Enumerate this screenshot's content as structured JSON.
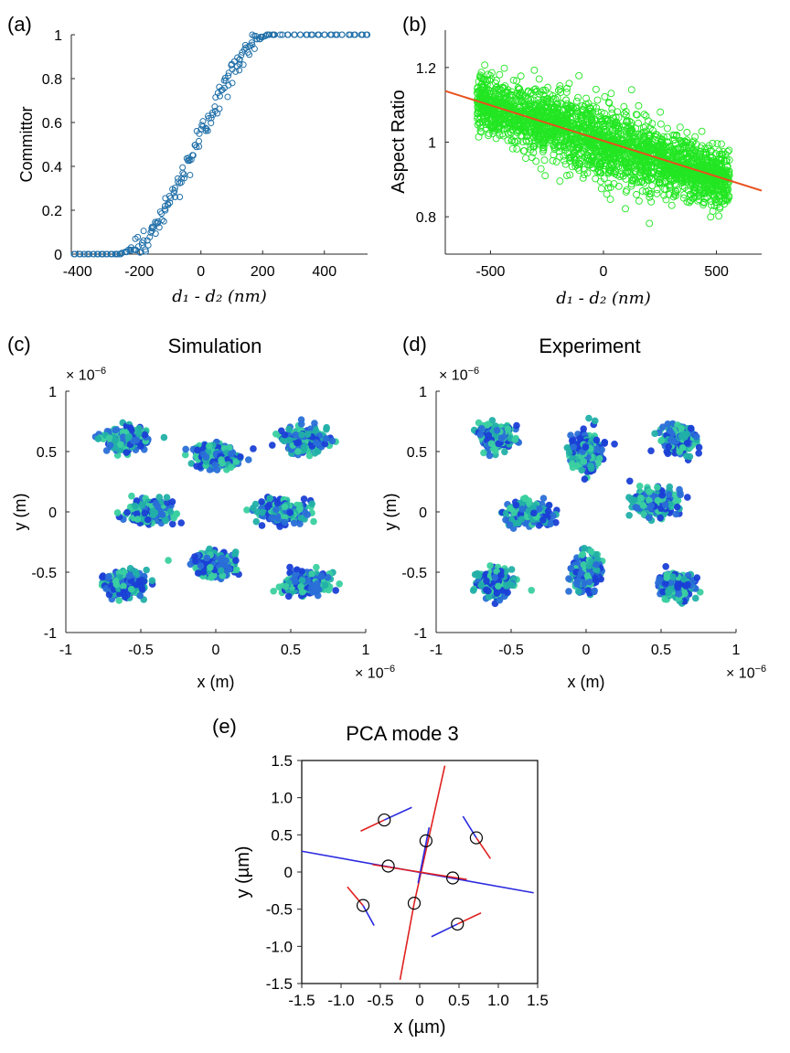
{
  "figure": {
    "panels": {
      "a": {
        "label": "(a)"
      },
      "b": {
        "label": "(b)"
      },
      "c": {
        "label": "(c)",
        "title": "Simulation",
        "x_exp": "× 10",
        "x_exp_power": "−6",
        "y_exp": "× 10",
        "y_exp_power": "−6"
      },
      "d": {
        "label": "(d)",
        "title": "Experiment",
        "x_exp": "× 10",
        "x_exp_power": "−6",
        "y_exp": "× 10",
        "y_exp_power": "−6"
      },
      "e": {
        "label": "(e)",
        "title": "PCA mode 3"
      }
    }
  },
  "chart_data": [
    {
      "id": "a",
      "type": "scatter",
      "xlabel": "d1 - d2 (nm)",
      "ylabel": "Committor",
      "xlim": [
        -420,
        540
      ],
      "ylim": [
        0,
        1
      ],
      "xticks": [
        -400,
        -200,
        0,
        200,
        400
      ],
      "xtick_labels": [
        "-400",
        "-200",
        "0",
        "200",
        "400"
      ],
      "yticks": [
        0,
        0.2,
        0.4,
        0.6,
        0.8,
        1
      ],
      "ytick_labels": [
        "0",
        "0.2",
        "0.4",
        "0.6",
        "0.8",
        "1"
      ],
      "series": [
        {
          "color": "#1f6fa8",
          "marker": "open-circle",
          "description": "sigmoid committor vs distance difference",
          "points": [
            [
              -410,
              0
            ],
            [
              -395,
              0
            ],
            [
              -380,
              0
            ],
            [
              -365,
              0
            ],
            [
              -350,
              0
            ],
            [
              -335,
              0
            ],
            [
              -320,
              0
            ],
            [
              -305,
              0
            ],
            [
              -290,
              0
            ],
            [
              -280,
              0
            ],
            [
              -270,
              0
            ],
            [
              -262,
              0
            ],
            [
              -255,
              0.005
            ],
            [
              -248,
              0.01
            ],
            [
              -240,
              0.01
            ],
            [
              -232,
              0.02
            ],
            [
              -225,
              0.03
            ],
            [
              -218,
              0.02
            ],
            [
              -212,
              0.04
            ],
            [
              -205,
              0.05
            ],
            [
              -198,
              0.04
            ],
            [
              -192,
              0.06
            ],
            [
              -185,
              0.07
            ],
            [
              -178,
              0.05
            ],
            [
              -172,
              0.08
            ],
            [
              -165,
              0.1
            ],
            [
              -160,
              0.09
            ],
            [
              -154,
              0.12
            ],
            [
              -148,
              0.11
            ],
            [
              -142,
              0.14
            ],
            [
              -136,
              0.13
            ],
            [
              -130,
              0.17
            ],
            [
              -124,
              0.15
            ],
            [
              -118,
              0.19
            ],
            [
              -112,
              0.22
            ],
            [
              -106,
              0.2
            ],
            [
              -100,
              0.24
            ],
            [
              -94,
              0.27
            ],
            [
              -88,
              0.25
            ],
            [
              -82,
              0.3
            ],
            [
              -76,
              0.33
            ],
            [
              -70,
              0.29
            ],
            [
              -64,
              0.35
            ],
            [
              -58,
              0.38
            ],
            [
              -52,
              0.36
            ],
            [
              -46,
              0.41
            ],
            [
              -40,
              0.44
            ],
            [
              -34,
              0.4
            ],
            [
              -28,
              0.46
            ],
            [
              -22,
              0.48
            ],
            [
              -16,
              0.5
            ],
            [
              -10,
              0.53
            ],
            [
              -4,
              0.51
            ],
            [
              2,
              0.55
            ],
            [
              8,
              0.58
            ],
            [
              14,
              0.56
            ],
            [
              20,
              0.6
            ],
            [
              26,
              0.63
            ],
            [
              32,
              0.61
            ],
            [
              38,
              0.65
            ],
            [
              44,
              0.68
            ],
            [
              50,
              0.66
            ],
            [
              56,
              0.7
            ],
            [
              62,
              0.73
            ],
            [
              68,
              0.71
            ],
            [
              74,
              0.76
            ],
            [
              80,
              0.78
            ],
            [
              86,
              0.75
            ],
            [
              92,
              0.8
            ],
            [
              98,
              0.83
            ],
            [
              104,
              0.81
            ],
            [
              110,
              0.85
            ],
            [
              116,
              0.88
            ],
            [
              122,
              0.86
            ],
            [
              128,
              0.9
            ],
            [
              134,
              0.92
            ],
            [
              140,
              0.9
            ],
            [
              146,
              0.93
            ],
            [
              152,
              0.95
            ],
            [
              158,
              0.94
            ],
            [
              164,
              0.96
            ],
            [
              170,
              0.97
            ],
            [
              176,
              0.96
            ],
            [
              182,
              0.98
            ],
            [
              188,
              0.98
            ],
            [
              194,
              0.99
            ],
            [
              200,
              0.99
            ],
            [
              208,
              0.995
            ],
            [
              216,
              1
            ],
            [
              224,
              1
            ],
            [
              232,
              1
            ],
            [
              240,
              1
            ],
            [
              260,
              1
            ],
            [
              280,
              1
            ],
            [
              300,
              1
            ],
            [
              320,
              1
            ],
            [
              340,
              1
            ],
            [
              360,
              1
            ],
            [
              380,
              1
            ],
            [
              400,
              1
            ],
            [
              420,
              1
            ],
            [
              440,
              1
            ],
            [
              460,
              1
            ],
            [
              480,
              1
            ],
            [
              500,
              1
            ],
            [
              520,
              1
            ],
            [
              535,
              1
            ]
          ]
        }
      ]
    },
    {
      "id": "b",
      "type": "scatter",
      "xlabel": "d1 - d2 (nm)",
      "ylabel": "Aspect Ratio",
      "xlim": [
        -700,
        700
      ],
      "ylim": [
        0.7,
        1.3
      ],
      "xticks": [
        -500,
        0,
        500
      ],
      "xtick_labels": [
        "-500",
        "0",
        "500"
      ],
      "yticks": [
        0.8,
        1,
        1.2
      ],
      "ytick_labels": [
        "0.8",
        "1",
        "1.2"
      ],
      "series": [
        {
          "color": "#22e622",
          "marker": "open-circle",
          "cloud": {
            "x_range": [
              -560,
              560
            ],
            "trend_intercept": 1.0,
            "trend_slope_per_nm": -0.00019,
            "spread": 0.05
          }
        },
        {
          "color": "#e8501e",
          "type": "line",
          "points": [
            [
              -700,
              1.137
            ],
            [
              700,
              0.87
            ]
          ]
        }
      ]
    },
    {
      "id": "c",
      "type": "scatter",
      "title": "Simulation",
      "xlabel": "x (m)",
      "ylabel": "y (m)",
      "xlim": [
        -1,
        1
      ],
      "ylim": [
        -1,
        1
      ],
      "xticks": [
        -1,
        -0.5,
        0,
        0.5,
        1
      ],
      "xtick_labels": [
        "-1",
        "-0.5",
        "0",
        "0.5",
        "1"
      ],
      "yticks": [
        -1,
        -0.5,
        0,
        0.5,
        1
      ],
      "ytick_labels": [
        "-1",
        "-0.5",
        "0",
        "0.5",
        "1"
      ],
      "colors": [
        "#1a3fd6",
        "#2a6fd8",
        "#22b0a8",
        "#3ad0a0"
      ],
      "clusters": [
        {
          "center": [
            -0.6,
            0.6
          ],
          "spread": [
            0.13,
            0.09
          ]
        },
        {
          "center": [
            0.0,
            0.46
          ],
          "spread": [
            0.12,
            0.09
          ]
        },
        {
          "center": [
            0.6,
            0.6
          ],
          "spread": [
            0.13,
            0.09
          ]
        },
        {
          "center": [
            -0.44,
            0.0
          ],
          "spread": [
            0.14,
            0.08
          ]
        },
        {
          "center": [
            0.44,
            0.0
          ],
          "spread": [
            0.14,
            0.08
          ]
        },
        {
          "center": [
            -0.6,
            -0.6
          ],
          "spread": [
            0.13,
            0.09
          ]
        },
        {
          "center": [
            0.0,
            -0.44
          ],
          "spread": [
            0.12,
            0.09
          ]
        },
        {
          "center": [
            0.6,
            -0.6
          ],
          "spread": [
            0.13,
            0.09
          ]
        }
      ]
    },
    {
      "id": "d",
      "type": "scatter",
      "title": "Experiment",
      "xlabel": "x (m)",
      "ylabel": "y (m)",
      "xlim": [
        -1,
        1
      ],
      "ylim": [
        -1,
        1
      ],
      "xticks": [
        -1,
        -0.5,
        0,
        0.5,
        1
      ],
      "xtick_labels": [
        "-1",
        "-0.5",
        "0",
        "0.5",
        "1"
      ],
      "yticks": [
        -1,
        -0.5,
        0,
        0.5,
        1
      ],
      "ytick_labels": [
        "-1",
        "-0.5",
        "0",
        "0.5",
        "1"
      ],
      "colors": [
        "#1a3fd6",
        "#2a6fd8",
        "#22b0a8",
        "#3ad0a0"
      ],
      "clusters": [
        {
          "center": [
            -0.6,
            0.62
          ],
          "spread": [
            0.1,
            0.1
          ]
        },
        {
          "center": [
            0.0,
            0.5
          ],
          "spread": [
            0.09,
            0.14
          ]
        },
        {
          "center": [
            0.62,
            0.6
          ],
          "spread": [
            0.1,
            0.1
          ]
        },
        {
          "center": [
            -0.38,
            -0.02
          ],
          "spread": [
            0.14,
            0.09
          ]
        },
        {
          "center": [
            0.46,
            0.08
          ],
          "spread": [
            0.13,
            0.1
          ]
        },
        {
          "center": [
            -0.6,
            -0.6
          ],
          "spread": [
            0.1,
            0.1
          ]
        },
        {
          "center": [
            0.0,
            -0.5
          ],
          "spread": [
            0.09,
            0.14
          ]
        },
        {
          "center": [
            0.6,
            -0.62
          ],
          "spread": [
            0.1,
            0.1
          ]
        }
      ]
    },
    {
      "id": "e",
      "type": "scatter",
      "title": "PCA mode 3",
      "xlabel": "x (µm)",
      "ylabel": "y (µm)",
      "xlim": [
        -1.5,
        1.5
      ],
      "ylim": [
        -1.5,
        1.5
      ],
      "xticks": [
        -1.5,
        -1.0,
        -0.5,
        0,
        0.5,
        1.0,
        1.5
      ],
      "xtick_labels": [
        "-1.5",
        "-1.0",
        "-0.5",
        "0",
        "0.5",
        "1.0",
        "1.5"
      ],
      "yticks": [
        -1.5,
        -1.0,
        -0.5,
        0,
        0.5,
        1.0,
        1.5
      ],
      "ytick_labels": [
        "-1.5",
        "-1.0",
        "-0.5",
        "0",
        "0.5",
        "1.0",
        "1.5"
      ],
      "particles": [
        {
          "x": -0.45,
          "y": 0.7
        },
        {
          "x": 0.08,
          "y": 0.42
        },
        {
          "x": 0.72,
          "y": 0.46
        },
        {
          "x": -0.4,
          "y": 0.08
        },
        {
          "x": 0.42,
          "y": -0.08
        },
        {
          "x": -0.72,
          "y": -0.45
        },
        {
          "x": -0.07,
          "y": -0.42
        },
        {
          "x": 0.48,
          "y": -0.7
        }
      ],
      "lines": [
        {
          "color": "#e02020",
          "from": [
            -0.75,
            0.55
          ],
          "to": [
            -0.45,
            0.7
          ]
        },
        {
          "color": "#2a2ae0",
          "from": [
            -0.45,
            0.7
          ],
          "to": [
            -0.1,
            0.87
          ]
        },
        {
          "color": "#2a2ae0",
          "from": [
            0.55,
            0.75
          ],
          "to": [
            0.72,
            0.46
          ]
        },
        {
          "color": "#e02020",
          "from": [
            0.72,
            0.46
          ],
          "to": [
            0.9,
            0.18
          ]
        },
        {
          "color": "#e02020",
          "from": [
            0.32,
            1.43
          ],
          "to": [
            -0.07,
            -0.42
          ]
        },
        {
          "color": "#e02020",
          "from": [
            -0.07,
            -0.42
          ],
          "to": [
            -0.25,
            -1.45
          ]
        },
        {
          "color": "#2a2ae0",
          "from": [
            -0.02,
            -0.15
          ],
          "to": [
            0.12,
            0.6
          ]
        },
        {
          "color": "#2a2ae0",
          "from": [
            -1.5,
            0.28
          ],
          "to": [
            1.45,
            -0.28
          ]
        },
        {
          "color": "#e02020",
          "from": [
            -0.6,
            0.1
          ],
          "to": [
            0.6,
            -0.1
          ]
        },
        {
          "color": "#e02020",
          "from": [
            -0.92,
            -0.2
          ],
          "to": [
            -0.72,
            -0.45
          ]
        },
        {
          "color": "#2a2ae0",
          "from": [
            -0.72,
            -0.45
          ],
          "to": [
            -0.58,
            -0.72
          ]
        },
        {
          "color": "#2a2ae0",
          "from": [
            0.15,
            -0.87
          ],
          "to": [
            0.48,
            -0.7
          ]
        },
        {
          "color": "#e02020",
          "from": [
            0.48,
            -0.7
          ],
          "to": [
            0.78,
            -0.55
          ]
        }
      ]
    }
  ]
}
